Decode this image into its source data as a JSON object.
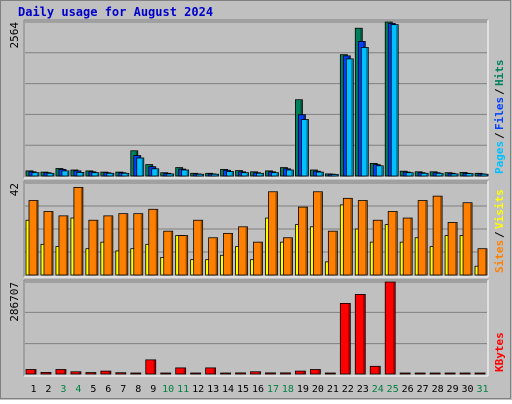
{
  "colors": {
    "title": "#0000cc",
    "hits": "#00805c",
    "files": "#0040ff",
    "pages": "#00c0ff",
    "visits": "#ffff00",
    "sites": "#ff8000",
    "kbytes": "#ff0000",
    "panel_bg": "#c0c0c0",
    "weekend": "#008040"
  },
  "chart_data": {
    "type": "bar",
    "title": "Daily usage for August 2024",
    "categories": [
      "1",
      "2",
      "3",
      "4",
      "5",
      "6",
      "7",
      "8",
      "9",
      "10",
      "11",
      "12",
      "13",
      "14",
      "15",
      "16",
      "17",
      "18",
      "19",
      "20",
      "21",
      "22",
      "23",
      "24",
      "25",
      "26",
      "27",
      "28",
      "29",
      "30",
      "31"
    ],
    "weekend_days": [
      "3",
      "4",
      "10",
      "11",
      "17",
      "18",
      "24",
      "25",
      "31"
    ],
    "panels": [
      {
        "name": "hits-files-pages",
        "max_label": "2564",
        "ylim": [
          0,
          2564
        ],
        "legend": [
          "Pages",
          "Files",
          "Hits"
        ],
        "series": [
          {
            "name": "Hits",
            "values": [
              85,
              65,
              125,
              100,
              85,
              65,
              65,
              420,
              190,
              55,
              140,
              45,
              45,
              110,
              90,
              70,
              85,
              140,
              1270,
              100,
              35,
              2020,
              2460,
              210,
              2570,
              80,
              70,
              70,
              55,
              60,
              45
            ]
          },
          {
            "name": "Files",
            "values": [
              70,
              55,
              110,
              85,
              70,
              55,
              55,
              340,
              155,
              45,
              115,
              35,
              35,
              95,
              70,
              55,
              70,
              120,
              1020,
              80,
              30,
              2000,
              2240,
              190,
              2540,
              65,
              55,
              55,
              45,
              45,
              35
            ]
          },
          {
            "name": "Pages",
            "values": [
              55,
              45,
              85,
              60,
              55,
              45,
              45,
              300,
              120,
              35,
              100,
              30,
              30,
              75,
              55,
              45,
              55,
              100,
              940,
              65,
              25,
              1950,
              2140,
              170,
              2520,
              55,
              45,
              45,
              35,
              40,
              30
            ]
          }
        ]
      },
      {
        "name": "visits-sites",
        "max_label": "42",
        "ylim": [
          0,
          42
        ],
        "legend": [
          "Sites",
          "Visits"
        ],
        "series": [
          {
            "name": "Visits",
            "values": [
              25,
              14,
              13,
              26,
              12,
              15,
              11,
              12,
              14,
              8,
              18,
              7,
              7,
              9,
              13,
              7,
              26,
              15,
              23,
              22,
              6,
              32,
              21,
              15,
              23,
              15,
              17,
              13,
              18,
              18,
              4
            ]
          },
          {
            "name": "Sites",
            "values": [
              34,
              29,
              27,
              40,
              25,
              27,
              28,
              28,
              30,
              20,
              18,
              25,
              17,
              19,
              22,
              15,
              38,
              17,
              31,
              38,
              20,
              35,
              34,
              25,
              29,
              26,
              34,
              36,
              24,
              33,
              12
            ]
          }
        ]
      },
      {
        "name": "kbytes",
        "max_label": "286707",
        "ylim": [
          0,
          286707
        ],
        "legend": [
          "KBytes"
        ],
        "series": [
          {
            "name": "KBytes",
            "values": [
              14000,
              5000,
              14000,
              7000,
              4500,
              9000,
              4000,
              3000,
              44000,
              3000,
              19000,
              3000,
              19000,
              3000,
              3500,
              7000,
              3500,
              3500,
              9000,
              14000,
              3000,
              220000,
              248000,
              24000,
              291000,
              3000,
              3000,
              3000,
              3000,
              3000,
              3000
            ]
          }
        ]
      }
    ]
  }
}
